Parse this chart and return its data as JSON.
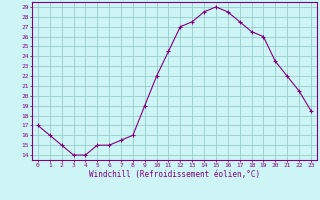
{
  "x": [
    0,
    1,
    2,
    3,
    4,
    5,
    6,
    7,
    8,
    9,
    10,
    11,
    12,
    13,
    14,
    15,
    16,
    17,
    18,
    19,
    20,
    21,
    22,
    23
  ],
  "y": [
    17,
    16,
    15,
    14,
    14,
    15,
    15,
    15.5,
    16,
    19,
    22,
    24.5,
    27,
    27.5,
    28.5,
    29,
    28.5,
    27.5,
    26.5,
    26,
    23.5,
    22,
    20.5,
    18.5
  ],
  "line_color": "#800080",
  "marker": "+",
  "marker_color": "#800080",
  "bg_color": "#cef5f5",
  "grid_color": "#99cccc",
  "xlabel": "Windchill (Refroidissement éolien,°C)",
  "ylim": [
    13.5,
    29.5
  ],
  "xlim": [
    -0.5,
    23.5
  ],
  "yticks": [
    14,
    15,
    16,
    17,
    18,
    19,
    20,
    21,
    22,
    23,
    24,
    25,
    26,
    27,
    28,
    29
  ],
  "xticks": [
    0,
    1,
    2,
    3,
    4,
    5,
    6,
    7,
    8,
    9,
    10,
    11,
    12,
    13,
    14,
    15,
    16,
    17,
    18,
    19,
    20,
    21,
    22,
    23
  ],
  "tick_color": "#800080",
  "tick_label_color": "#800080",
  "xlabel_color": "#800080",
  "axis_color": "#800080",
  "spine_color": "#800080"
}
